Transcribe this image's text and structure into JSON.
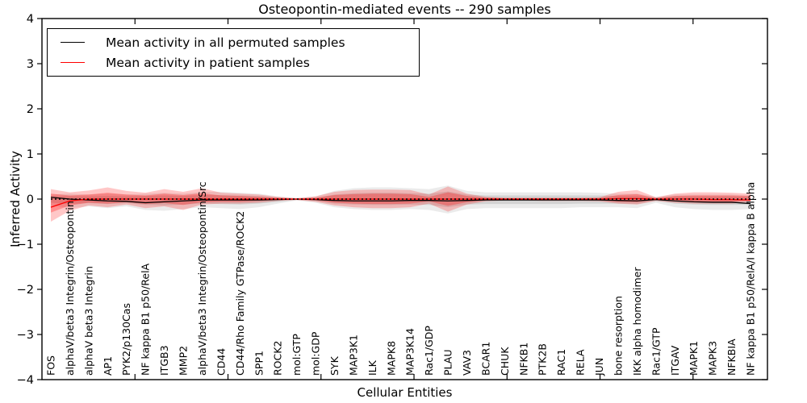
{
  "chart_data": {
    "type": "line",
    "title": "Osteopontin-mediated events -- 290 samples",
    "xlabel": "Cellular Entities",
    "ylabel": "Inferred Activity",
    "ylim": [
      -4,
      4
    ],
    "yticks": [
      -4,
      -3,
      -2,
      -1,
      0,
      1,
      2,
      3,
      4
    ],
    "grid": false,
    "legend_position": "upper left",
    "zero_line": {
      "value": 0,
      "style": "dotted",
      "color": "#000000"
    },
    "categories": [
      "FOS",
      "alphaV/beta3 Integrin/Osteopontin",
      "alphaV beta3 Integrin",
      "AP1",
      "PYK2/p130Cas",
      "NF kappa B1 p50/RelA",
      "ITGB3",
      "MMP2",
      "alphaV/beta3 Integrin/Osteopontin/Src",
      "CD44",
      "CD44/Rho Family GTPase/ROCK2",
      "SPP1",
      "ROCK2",
      "mol:GTP",
      "mol:GDP",
      "SYK",
      "MAP3K1",
      "ILK",
      "MAPK8",
      "MAP3K14",
      "Rac1/GDP",
      "PLAU",
      "VAV3",
      "BCAR1",
      "CHUK",
      "NFKB1",
      "PTK2B",
      "RAC1",
      "RELA",
      "JUN",
      "bone resorption",
      "IKK alpha homodimer",
      "Rac1/GTP",
      "ITGAV",
      "MAPK1",
      "MAPK3",
      "NFKBIA",
      "NF kappa B1 p50/RelA/I kappa B alpha"
    ],
    "series": [
      {
        "name": "Mean activity in all permuted samples",
        "color": "#000000",
        "values": [
          0.04,
          0.0,
          -0.02,
          -0.04,
          -0.05,
          -0.08,
          -0.06,
          -0.04,
          -0.02,
          -0.02,
          -0.02,
          -0.02,
          -0.01,
          0.0,
          -0.01,
          -0.03,
          -0.04,
          -0.04,
          -0.04,
          -0.03,
          -0.03,
          -0.04,
          -0.03,
          -0.02,
          -0.02,
          -0.02,
          -0.02,
          -0.02,
          -0.02,
          -0.02,
          -0.03,
          -0.04,
          -0.01,
          -0.04,
          -0.06,
          -0.07,
          -0.07,
          -0.1
        ]
      },
      {
        "name": "Mean activity in patient samples",
        "color": "#ff0000",
        "values": [
          -0.18,
          -0.04,
          0,
          0,
          0,
          0,
          0,
          0,
          0,
          0,
          0,
          0,
          0,
          0,
          0,
          0,
          0,
          0,
          0,
          0,
          0,
          0,
          0,
          0,
          0,
          0,
          0,
          0,
          0,
          0,
          0.01,
          0.01,
          0,
          0,
          0,
          -0.01,
          -0.01,
          -0.02
        ]
      }
    ],
    "bands": [
      {
        "name": "permuted-samples-range-outer",
        "color": "#000000",
        "opacity": 0.08,
        "upper": [
          0.1,
          0.12,
          0.1,
          0.12,
          0.1,
          0.12,
          0.14,
          0.12,
          0.16,
          0.16,
          0.14,
          0.12,
          0.06,
          0.02,
          0.06,
          0.18,
          0.24,
          0.26,
          0.26,
          0.24,
          0.22,
          0.3,
          0.18,
          0.15,
          0.15,
          0.15,
          0.15,
          0.15,
          0.15,
          0.14,
          0.12,
          0.12,
          0.05,
          0.1,
          0.1,
          0.1,
          0.1,
          0.08
        ],
        "lower": [
          -0.14,
          -0.2,
          -0.16,
          -0.2,
          -0.16,
          -0.24,
          -0.26,
          -0.22,
          -0.18,
          -0.2,
          -0.22,
          -0.18,
          -0.1,
          -0.03,
          -0.08,
          -0.18,
          -0.22,
          -0.24,
          -0.24,
          -0.22,
          -0.24,
          -0.32,
          -0.22,
          -0.2,
          -0.2,
          -0.2,
          -0.2,
          -0.2,
          -0.18,
          -0.18,
          -0.18,
          -0.2,
          -0.08,
          -0.18,
          -0.22,
          -0.24,
          -0.24,
          -0.22
        ]
      },
      {
        "name": "permuted-samples-range-inner",
        "color": "#000000",
        "opacity": 0.1,
        "upper": [
          0.06,
          0.07,
          0.06,
          0.07,
          0.06,
          0.07,
          0.08,
          0.07,
          0.09,
          0.09,
          0.08,
          0.07,
          0.03,
          0.01,
          0.03,
          0.1,
          0.13,
          0.14,
          0.14,
          0.13,
          0.12,
          0.17,
          0.1,
          0.08,
          0.08,
          0.08,
          0.08,
          0.08,
          0.08,
          0.08,
          0.07,
          0.07,
          0.03,
          0.06,
          0.06,
          0.06,
          0.06,
          0.04
        ],
        "lower": [
          -0.08,
          -0.11,
          -0.09,
          -0.11,
          -0.09,
          -0.13,
          -0.14,
          -0.12,
          -0.1,
          -0.11,
          -0.12,
          -0.1,
          -0.06,
          -0.02,
          -0.04,
          -0.1,
          -0.12,
          -0.13,
          -0.13,
          -0.12,
          -0.13,
          -0.18,
          -0.12,
          -0.11,
          -0.11,
          -0.11,
          -0.11,
          -0.11,
          -0.1,
          -0.1,
          -0.1,
          -0.11,
          -0.04,
          -0.1,
          -0.12,
          -0.13,
          -0.13,
          -0.12
        ]
      },
      {
        "name": "patient-samples-range-outer",
        "color": "#ff0000",
        "opacity": 0.22,
        "upper": [
          0.22,
          0.15,
          0.19,
          0.26,
          0.18,
          0.14,
          0.22,
          0.16,
          0.24,
          0.14,
          0.12,
          0.1,
          0.05,
          0.02,
          0.06,
          0.16,
          0.2,
          0.21,
          0.21,
          0.2,
          0.1,
          0.28,
          0.12,
          0.05,
          0.03,
          0.03,
          0.03,
          0.03,
          0.03,
          0.04,
          0.16,
          0.2,
          0.04,
          0.12,
          0.15,
          0.15,
          0.14,
          0.12
        ],
        "lower": [
          -0.5,
          -0.26,
          -0.14,
          -0.18,
          -0.12,
          -0.2,
          -0.16,
          -0.24,
          -0.12,
          -0.1,
          -0.1,
          -0.08,
          -0.04,
          -0.02,
          -0.06,
          -0.14,
          -0.18,
          -0.2,
          -0.2,
          -0.18,
          -0.1,
          -0.28,
          -0.12,
          -0.05,
          -0.03,
          -0.03,
          -0.04,
          -0.04,
          -0.04,
          -0.05,
          -0.1,
          -0.12,
          -0.04,
          -0.08,
          -0.1,
          -0.1,
          -0.1,
          -0.06
        ]
      },
      {
        "name": "patient-samples-range-inner",
        "color": "#ff0000",
        "opacity": 0.28,
        "upper": [
          0.12,
          0.08,
          0.1,
          0.14,
          0.1,
          0.08,
          0.12,
          0.09,
          0.13,
          0.08,
          0.07,
          0.05,
          0.03,
          0.01,
          0.03,
          0.09,
          0.11,
          0.12,
          0.12,
          0.11,
          0.05,
          0.15,
          0.07,
          0.03,
          0.02,
          0.02,
          0.02,
          0.02,
          0.02,
          0.02,
          0.09,
          0.11,
          0.02,
          0.07,
          0.08,
          0.08,
          0.08,
          0.07
        ],
        "lower": [
          -0.3,
          -0.14,
          -0.08,
          -0.1,
          -0.07,
          -0.11,
          -0.09,
          -0.13,
          -0.07,
          -0.06,
          -0.06,
          -0.04,
          -0.02,
          -0.01,
          -0.03,
          -0.08,
          -0.1,
          -0.11,
          -0.11,
          -0.1,
          -0.05,
          -0.15,
          -0.07,
          -0.03,
          -0.02,
          -0.02,
          -0.02,
          -0.02,
          -0.02,
          -0.03,
          -0.06,
          -0.07,
          -0.02,
          -0.04,
          -0.06,
          -0.06,
          -0.06,
          -0.03
        ]
      }
    ]
  }
}
